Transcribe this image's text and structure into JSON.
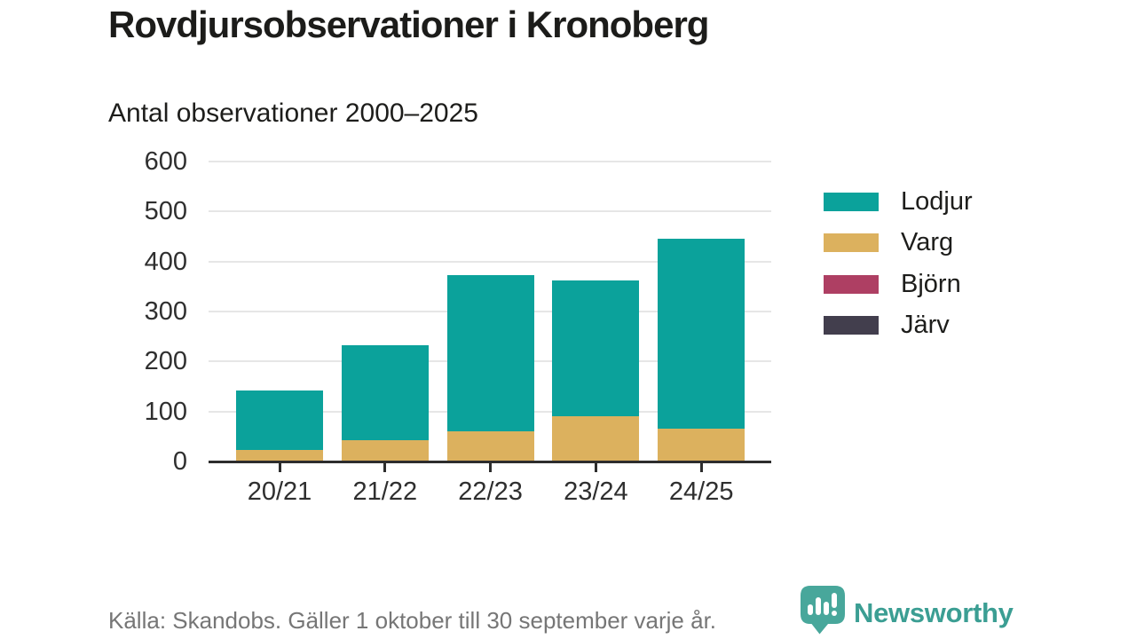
{
  "title": "Rovdjursobservationer i Kronoberg",
  "subtitle": "Antal observationer 2000–2025",
  "footer": {
    "source": "Källa: Skandobs. Gäller 1 oktober till 30 september varje år."
  },
  "branding": {
    "name": "Newsworthy",
    "color": "#3b9e93",
    "icon": "newsworthy-bubble-barchart-icon"
  },
  "colors": {
    "lodjur": "#0ba29b",
    "varg": "#dcb15e",
    "bjorn": "#ae3f63",
    "jarv": "#423e4d",
    "gridline": "#e6e6e6",
    "axis": "#2d2d2d"
  },
  "chart_data": {
    "type": "bar",
    "stacked": true,
    "categories": [
      "20/21",
      "21/22",
      "22/23",
      "23/24",
      "24/25"
    ],
    "series": [
      {
        "name": "Lodjur",
        "color": "#0ba29b",
        "values": [
          119,
          190,
          311,
          272,
          380
        ]
      },
      {
        "name": "Varg",
        "color": "#dcb15e",
        "values": [
          23,
          43,
          61,
          90,
          65
        ]
      },
      {
        "name": "Björn",
        "color": "#ae3f63",
        "values": [
          0,
          0,
          0,
          0,
          0
        ]
      },
      {
        "name": "Järv",
        "color": "#423e4d",
        "values": [
          0,
          0,
          0,
          0,
          0
        ]
      }
    ],
    "totals": [
      142,
      233,
      372,
      362,
      445
    ],
    "title": "Rovdjursobservationer i Kronoberg",
    "subtitle": "Antal observationer 2000–2025",
    "xlabel": "",
    "ylabel": "",
    "ylim": [
      0,
      600
    ],
    "yticks": [
      0,
      100,
      200,
      300,
      400,
      500,
      600
    ],
    "grid": "horizontal",
    "legend_position": "right"
  }
}
